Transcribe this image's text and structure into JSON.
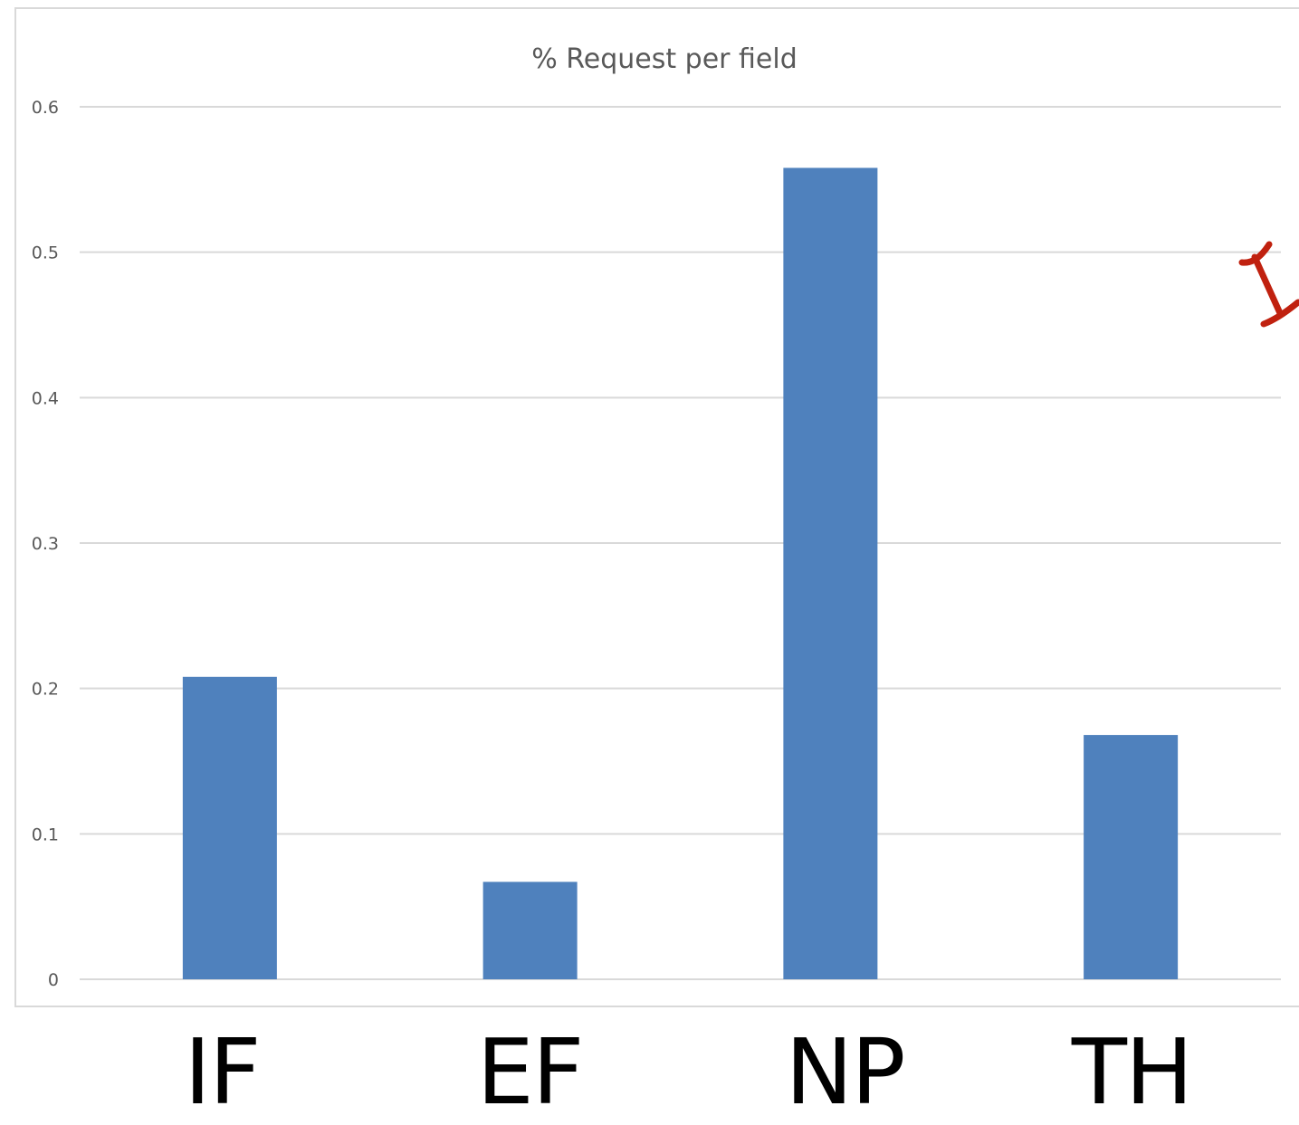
{
  "colors": {
    "bar": "#4f81bd",
    "grid": "#d9d9d9",
    "tick": "#595959",
    "bracket": "#c0210f"
  },
  "chart_data": {
    "type": "bar",
    "title": "% Request per field",
    "categories": [
      "IF",
      "EF",
      "NP",
      "TH"
    ],
    "values": [
      0.208,
      0.067,
      0.558,
      0.168
    ],
    "ylim": [
      0,
      0.6
    ],
    "yticks": [
      "0",
      "0.1",
      "0.2",
      "0.3",
      "0.4",
      "0.5",
      "0.6"
    ],
    "ytick_values": [
      0,
      0.1,
      0.2,
      0.3,
      0.4,
      0.5,
      0.6
    ],
    "grid": true,
    "legend": "none",
    "xlabel": "",
    "ylabel": ""
  }
}
